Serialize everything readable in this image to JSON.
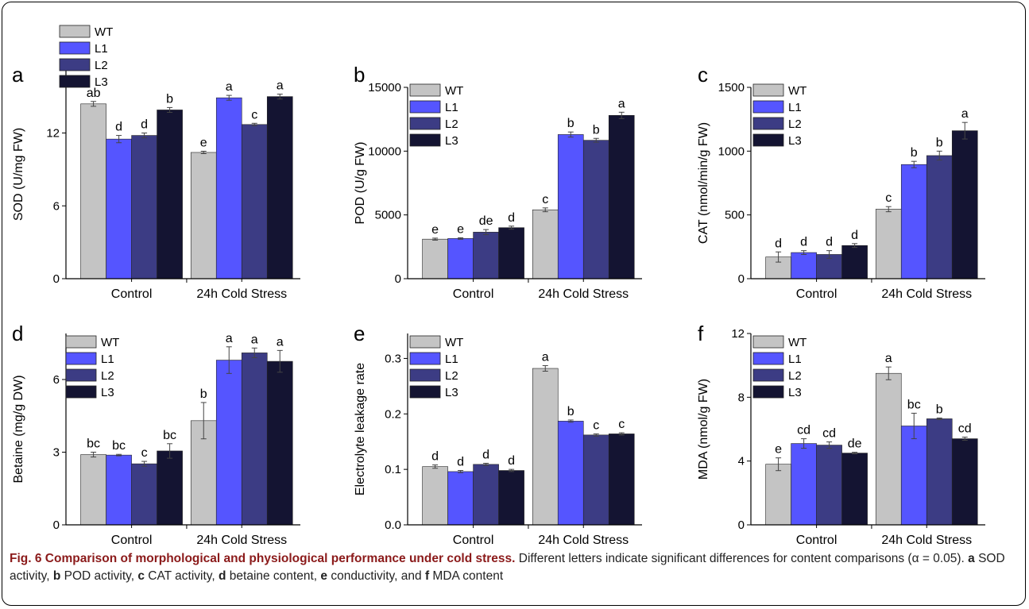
{
  "colors": {
    "WT": "#c4c4c4",
    "L1": "#5555ff",
    "L2": "#3c3c84",
    "L3": "#141432"
  },
  "legend": [
    "WT",
    "L1",
    "L2",
    "L3"
  ],
  "caption": {
    "title": "Fig. 6 Comparison of morphological and physiological performance under cold stress.",
    "text": " Different letters indicate significant differences for content comparisons (α = 0.05). ",
    "parts": [
      {
        "label": "a",
        "text": " SOD activity, "
      },
      {
        "label": "b",
        "text": " POD activity, "
      },
      {
        "label": "c",
        "text": " CAT activity, "
      },
      {
        "label": "d",
        "text": " betaine content, "
      },
      {
        "label": "e",
        "text": " conductivity, and "
      },
      {
        "label": "f",
        "text": " MDA content"
      }
    ]
  },
  "chart_data": [
    {
      "panel": "a",
      "type": "bar",
      "ylabel": "SOD (U/mg FW)",
      "ylim": [
        0,
        17.2
      ],
      "yticks": [
        0,
        6,
        12
      ],
      "ytick_labels": [
        "0",
        "6",
        "12"
      ],
      "categories": [
        "Control",
        "24h Cold Stress"
      ],
      "legend_position": "top-left",
      "series": [
        {
          "name": "WT",
          "values": [
            14.4,
            10.4
          ],
          "errors": [
            0.2,
            0.1
          ],
          "letters": [
            "ab",
            "e"
          ]
        },
        {
          "name": "L1",
          "values": [
            11.5,
            14.9
          ],
          "errors": [
            0.3,
            0.2
          ],
          "letters": [
            "d",
            "a"
          ]
        },
        {
          "name": "L2",
          "values": [
            11.8,
            12.7
          ],
          "errors": [
            0.2,
            0.1
          ],
          "letters": [
            "d",
            "c"
          ]
        },
        {
          "name": "L3",
          "values": [
            13.9,
            15.0
          ],
          "errors": [
            0.2,
            0.2
          ],
          "letters": [
            "b",
            "a"
          ]
        }
      ]
    },
    {
      "panel": "b",
      "type": "bar",
      "ylabel": "POD (U/g FW)",
      "ylim": [
        0,
        15000
      ],
      "yticks": [
        0,
        5000,
        10000,
        15000
      ],
      "ytick_labels": [
        "0",
        "5000",
        "10000",
        "15000"
      ],
      "categories": [
        "Control",
        "24h Cold Stress"
      ],
      "legend_position": "top-left",
      "series": [
        {
          "name": "WT",
          "values": [
            3100,
            5400
          ],
          "errors": [
            80,
            150
          ],
          "letters": [
            "e",
            "c"
          ]
        },
        {
          "name": "L1",
          "values": [
            3150,
            11300
          ],
          "errors": [
            60,
            200
          ],
          "letters": [
            "e",
            "b"
          ]
        },
        {
          "name": "L2",
          "values": [
            3650,
            10850
          ],
          "errors": [
            200,
            150
          ],
          "letters": [
            "de",
            "b"
          ]
        },
        {
          "name": "L3",
          "values": [
            4000,
            12800
          ],
          "errors": [
            120,
            250
          ],
          "letters": [
            "d",
            "a"
          ]
        }
      ]
    },
    {
      "panel": "c",
      "type": "bar",
      "ylabel": "CAT (nmol/min/g FW)",
      "ylim": [
        0,
        1500
      ],
      "yticks": [
        0,
        500,
        1000,
        1500
      ],
      "ytick_labels": [
        "0",
        "500",
        "1000",
        "1500"
      ],
      "categories": [
        "Control",
        "24h Cold Stress"
      ],
      "legend_position": "top-left",
      "series": [
        {
          "name": "WT",
          "values": [
            170,
            545
          ],
          "errors": [
            40,
            20
          ],
          "letters": [
            "d",
            "c"
          ]
        },
        {
          "name": "L1",
          "values": [
            205,
            895
          ],
          "errors": [
            15,
            25
          ],
          "letters": [
            "d",
            "b"
          ]
        },
        {
          "name": "L2",
          "values": [
            190,
            965
          ],
          "errors": [
            30,
            35
          ],
          "letters": [
            "d",
            "b"
          ]
        },
        {
          "name": "L3",
          "values": [
            260,
            1160
          ],
          "errors": [
            15,
            65
          ],
          "letters": [
            "d",
            "a"
          ]
        }
      ]
    },
    {
      "panel": "d",
      "type": "bar",
      "ylabel": "Betaine (mg/g DW)",
      "ylim": [
        0,
        7.9
      ],
      "yticks": [
        0,
        3,
        6
      ],
      "ytick_labels": [
        "0",
        "3",
        "6"
      ],
      "categories": [
        "Control",
        "24h Cold Stress"
      ],
      "legend_position": "top-left",
      "series": [
        {
          "name": "WT",
          "values": [
            2.9,
            4.3
          ],
          "errors": [
            0.1,
            0.75
          ],
          "letters": [
            "bc",
            "b"
          ]
        },
        {
          "name": "L1",
          "values": [
            2.88,
            6.8
          ],
          "errors": [
            0.03,
            0.55
          ],
          "letters": [
            "bc",
            "a"
          ]
        },
        {
          "name": "L2",
          "values": [
            2.52,
            7.1
          ],
          "errors": [
            0.1,
            0.2
          ],
          "letters": [
            "c",
            "a"
          ]
        },
        {
          "name": "L3",
          "values": [
            3.05,
            6.75
          ],
          "errors": [
            0.3,
            0.45
          ],
          "letters": [
            "bc",
            "a"
          ]
        }
      ]
    },
    {
      "panel": "e",
      "type": "bar",
      "ylabel": "Electrolyte leakage rate",
      "ylim": [
        0,
        0.345
      ],
      "yticks": [
        0,
        0.1,
        0.2,
        0.3
      ],
      "ytick_labels": [
        "0.0",
        "0.1",
        "0.2",
        "0.3"
      ],
      "categories": [
        "Control",
        "24h Cold Stress"
      ],
      "legend_position": "top-left",
      "series": [
        {
          "name": "WT",
          "values": [
            0.105,
            0.282
          ],
          "errors": [
            0.003,
            0.005
          ],
          "letters": [
            "d",
            "a"
          ]
        },
        {
          "name": "L1",
          "values": [
            0.096,
            0.187
          ],
          "errors": [
            0.002,
            0.002
          ],
          "letters": [
            "d",
            "b"
          ]
        },
        {
          "name": "L2",
          "values": [
            0.109,
            0.162
          ],
          "errors": [
            0.002,
            0.002
          ],
          "letters": [
            "d",
            "c"
          ]
        },
        {
          "name": "L3",
          "values": [
            0.098,
            0.164
          ],
          "errors": [
            0.002,
            0.002
          ],
          "letters": [
            "d",
            "c"
          ]
        }
      ]
    },
    {
      "panel": "f",
      "type": "bar",
      "ylabel": "MDA (nmol/g FW)",
      "ylim": [
        0,
        12
      ],
      "yticks": [
        0,
        4,
        8,
        12
      ],
      "ytick_labels": [
        "0",
        "4",
        "8",
        "12"
      ],
      "categories": [
        "Control",
        "24h Cold Stress"
      ],
      "legend_position": "top-left",
      "series": [
        {
          "name": "WT",
          "values": [
            3.8,
            9.5
          ],
          "errors": [
            0.4,
            0.4
          ],
          "letters": [
            "e",
            "a"
          ]
        },
        {
          "name": "L1",
          "values": [
            5.1,
            6.2
          ],
          "errors": [
            0.3,
            0.8
          ],
          "letters": [
            "cd",
            "bc"
          ]
        },
        {
          "name": "L2",
          "values": [
            5.0,
            6.65
          ],
          "errors": [
            0.2,
            0.05
          ],
          "letters": [
            "cd",
            "b"
          ]
        },
        {
          "name": "L3",
          "values": [
            4.5,
            5.4
          ],
          "errors": [
            0.05,
            0.1
          ],
          "letters": [
            "de",
            "cd"
          ]
        }
      ]
    }
  ]
}
